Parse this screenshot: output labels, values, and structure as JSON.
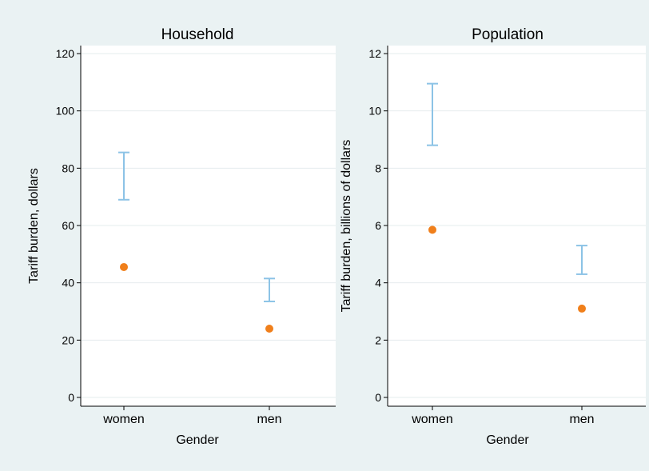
{
  "colors": {
    "background": "#eaf2f3",
    "plot_background": "#ffffff",
    "gridline": "#e6ecee",
    "axis": "#000000",
    "range": "#8cc3e6",
    "point": "#f07f1b"
  },
  "chart_data": [
    {
      "type": "scatter",
      "title": "Household",
      "xlabel": "Gender",
      "ylabel": "Tariff burden, dollars",
      "categories": [
        "women",
        "men"
      ],
      "ylim": [
        0,
        120
      ],
      "yticks": [
        0,
        20,
        40,
        60,
        80,
        100,
        120
      ],
      "grid": true,
      "series": [
        {
          "kind": "range",
          "low": [
            69,
            33.5
          ],
          "high": [
            85.5,
            41.5
          ]
        },
        {
          "kind": "point",
          "values": [
            45.5,
            24
          ]
        }
      ]
    },
    {
      "type": "scatter",
      "title": "Population",
      "xlabel": "Gender",
      "ylabel": "Tariff burden, billions of dollars",
      "categories": [
        "women",
        "men"
      ],
      "ylim": [
        0,
        12
      ],
      "yticks": [
        0,
        2,
        4,
        6,
        8,
        10,
        12
      ],
      "grid": true,
      "series": [
        {
          "kind": "range",
          "low": [
            8.8,
            4.3
          ],
          "high": [
            10.95,
            5.3
          ]
        },
        {
          "kind": "point",
          "values": [
            5.85,
            3.1
          ]
        }
      ]
    }
  ]
}
